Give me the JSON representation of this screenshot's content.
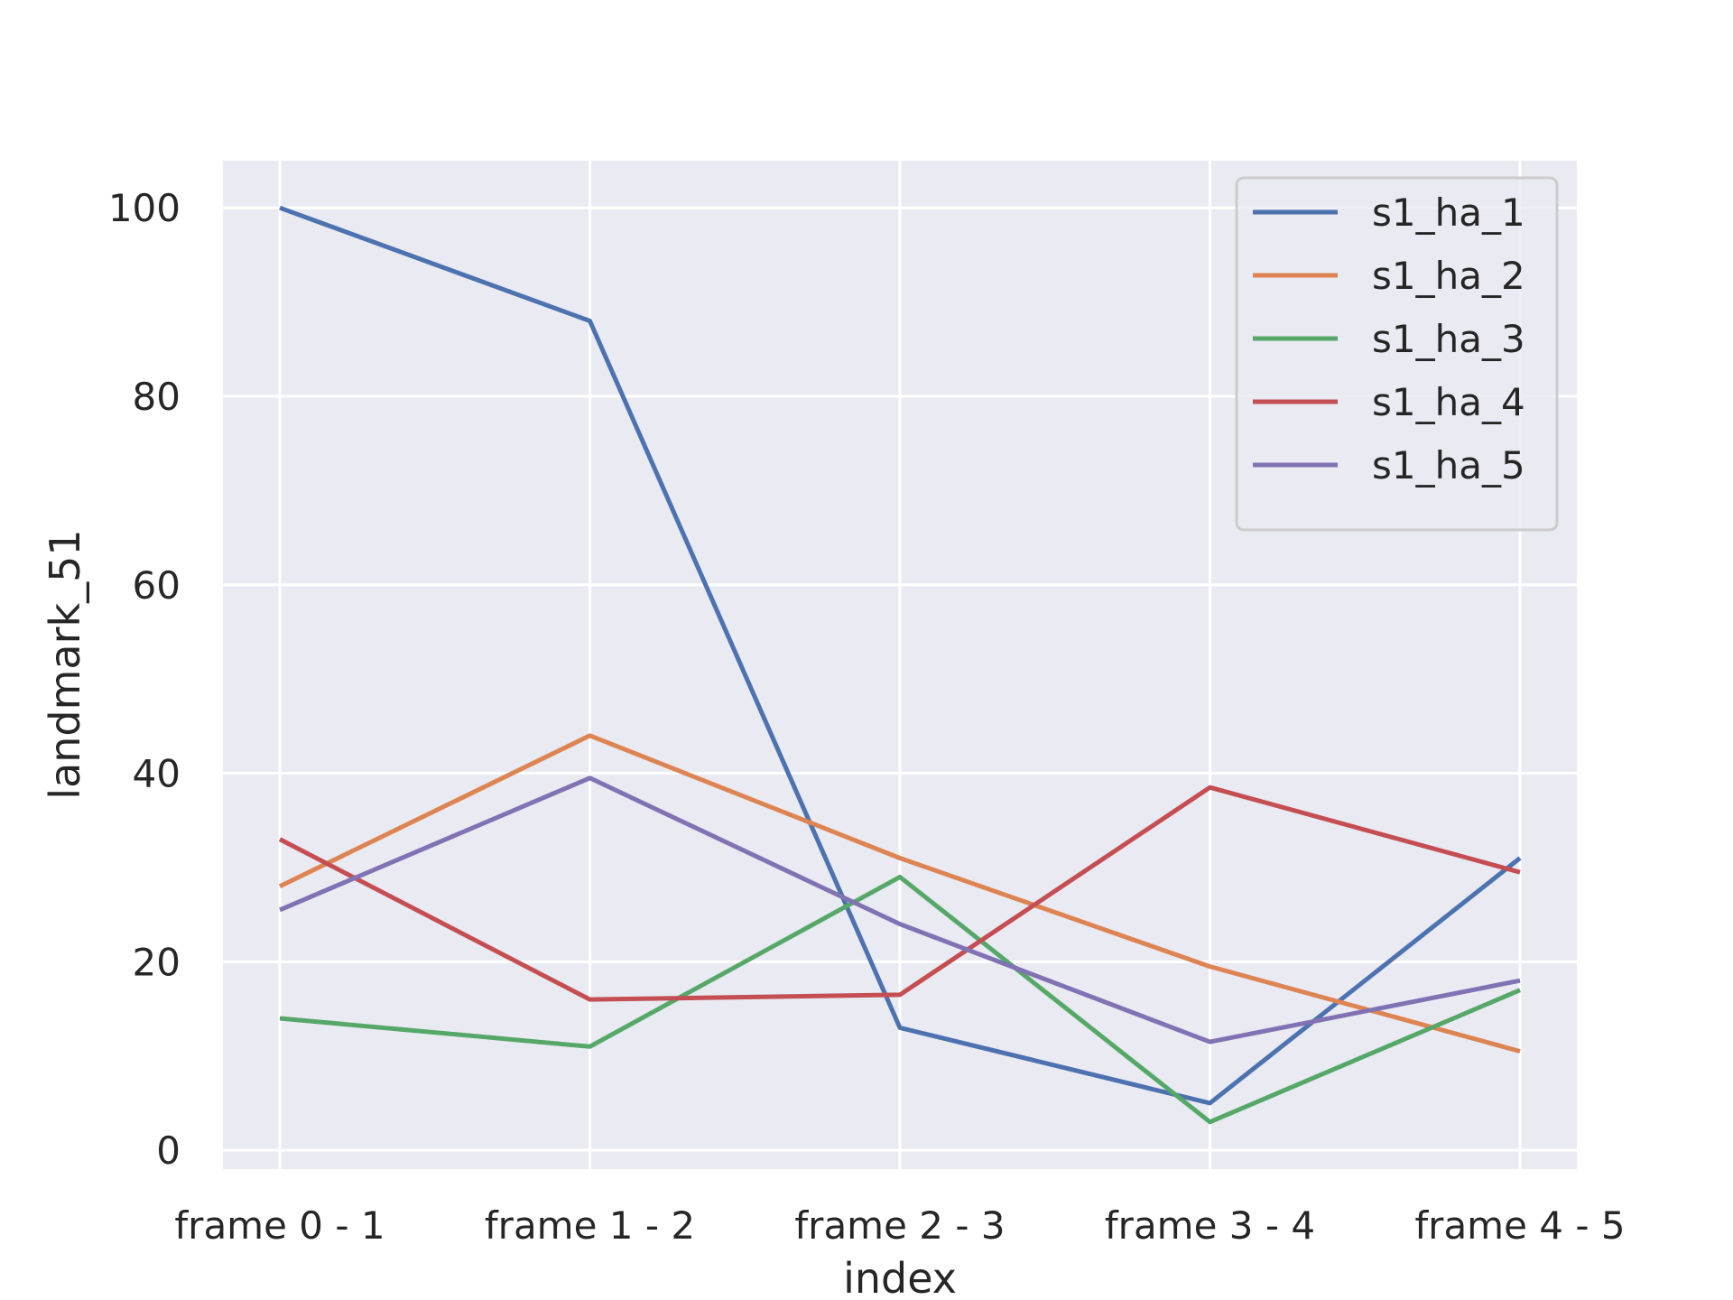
{
  "chart_data": {
    "type": "line",
    "categories": [
      "frame 0 - 1",
      "frame 1 - 2",
      "frame 2 - 3",
      "frame 3 - 4",
      "frame 4 - 5"
    ],
    "xlabel": "index",
    "ylabel": "landmark_51",
    "ylim": [
      -2,
      105
    ],
    "yticks": [
      0,
      20,
      40,
      60,
      80,
      100
    ],
    "grid": true,
    "legend_position": "top-right",
    "background": "#eaeaf2",
    "series": [
      {
        "name": "s1_ha_1",
        "color": "#4c72b0",
        "values": [
          100,
          88,
          13,
          5,
          31
        ]
      },
      {
        "name": "s1_ha_2",
        "color": "#dd8452",
        "values": [
          28,
          44,
          31,
          19.5,
          10.5
        ]
      },
      {
        "name": "s1_ha_3",
        "color": "#55a868",
        "values": [
          14,
          11,
          29,
          3,
          17
        ]
      },
      {
        "name": "s1_ha_4",
        "color": "#c44e52",
        "values": [
          33,
          16,
          16.5,
          38.5,
          29.5
        ]
      },
      {
        "name": "s1_ha_5",
        "color": "#8172b3",
        "values": [
          25.5,
          39.5,
          24,
          11.5,
          18
        ]
      }
    ]
  }
}
